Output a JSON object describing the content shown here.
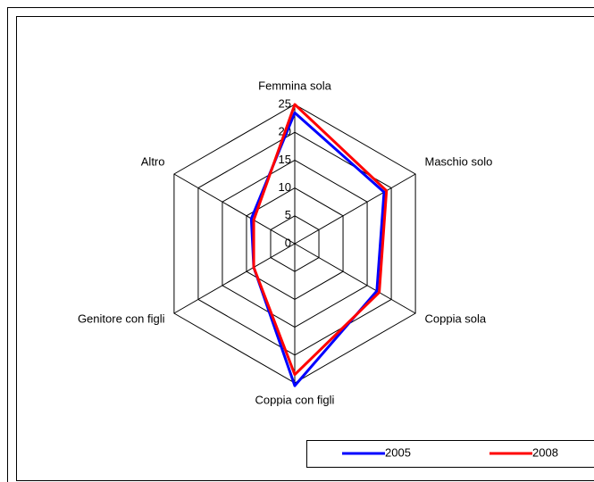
{
  "chart_data": {
    "type": "radar",
    "categories": [
      "Femmina sola",
      "Maschio solo",
      "Coppia sola",
      "Coppia con figli",
      "Genitore con figli",
      "Altro"
    ],
    "series": [
      {
        "name": "2005",
        "color": "#0000ff",
        "values": [
          23.5,
          18.5,
          17,
          25.5,
          8.5,
          9
        ]
      },
      {
        "name": "2008",
        "color": "#ff0000",
        "values": [
          25,
          19,
          17.5,
          23.5,
          8.5,
          8.5
        ]
      }
    ],
    "ylim": [
      0,
      25
    ],
    "yticks": [
      0,
      5,
      10,
      15,
      20,
      25
    ],
    "grid": true,
    "legend": "bottom"
  }
}
